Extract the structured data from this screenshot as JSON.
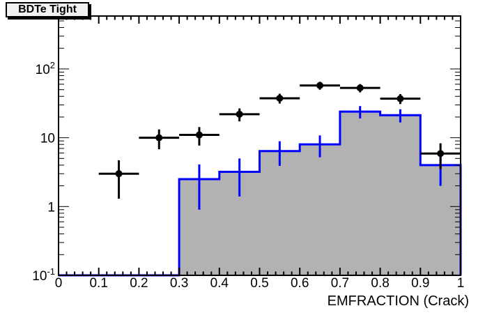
{
  "chart_data": {
    "type": "bar",
    "subtype": "root-histogram-with-points",
    "title": "BDTe Tight",
    "xlabel": "EMFRACTION (Crack)",
    "ylabel": "",
    "x_range": [
      0,
      1
    ],
    "y_range": [
      0.1,
      588
    ],
    "y_scale": "log",
    "grid": false,
    "legend": "none",
    "x_ticks": {
      "values": [
        0,
        0.1,
        0.2,
        0.3,
        0.4,
        0.5,
        0.6,
        0.7,
        0.8,
        0.9,
        1
      ],
      "labels": [
        "0",
        "0.1",
        "0.2",
        "0.3",
        "0.4",
        "0.5",
        "0.6",
        "0.7",
        "0.8",
        "0.9",
        "1"
      ],
      "minor_step": 0.02
    },
    "y_ticks": [
      {
        "value": 0.1,
        "base": "10",
        "exp": "-1"
      },
      {
        "value": 1,
        "base": "1",
        "exp": ""
      },
      {
        "value": 10,
        "base": "10",
        "exp": ""
      },
      {
        "value": 100,
        "base": "10",
        "exp": "2"
      }
    ],
    "histogram": {
      "name": "filled-histogram",
      "bin_edges": [
        0,
        0.1,
        0.2,
        0.3,
        0.4,
        0.5,
        0.6,
        0.7,
        0.8,
        0.9,
        1.0
      ],
      "values": [
        0,
        0,
        0,
        2.5,
        3.2,
        6.4,
        8.0,
        24.0,
        21.3,
        4.0
      ],
      "errors": [
        0,
        0,
        0,
        1.6,
        1.8,
        2.5,
        2.8,
        4.9,
        4.6,
        2.0
      ],
      "fill_color": "#b2b2b2",
      "line_color": "#0000ff"
    },
    "points": {
      "name": "data-points",
      "x": [
        0.15,
        0.25,
        0.35,
        0.45,
        0.55,
        0.65,
        0.75,
        0.85,
        0.95
      ],
      "y": [
        3.0,
        10.0,
        11.0,
        22.0,
        37.5,
        57.5,
        53.0,
        37.0,
        5.9
      ],
      "y_err": [
        1.7,
        3.2,
        3.3,
        4.7,
        6.1,
        7.6,
        7.3,
        6.1,
        2.4
      ],
      "x_err": 0.05,
      "color": "#000000",
      "marker": "full-circle"
    },
    "colors": {
      "frame": "#000000",
      "background": "#ffffff",
      "title_box_bg": "#f2f2f2",
      "title_box_shadow": "#000000"
    }
  }
}
